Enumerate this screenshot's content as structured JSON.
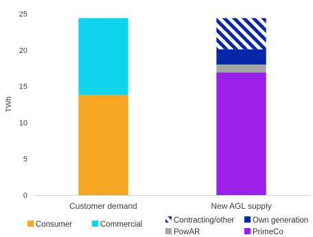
{
  "chart_data": {
    "type": "bar",
    "stacked": true,
    "ylabel": "TWh",
    "xlabel": "",
    "ylim": [
      0,
      25
    ],
    "yticks": [
      0,
      5,
      10,
      15,
      20,
      25
    ],
    "categories": [
      "Customer demand",
      "New AGL supply"
    ],
    "series": [
      {
        "name": "Consumer",
        "values": [
          13.8,
          0
        ],
        "color": "#f5a623",
        "pattern": "solid",
        "legend_group": 0
      },
      {
        "name": "Commercial",
        "values": [
          10.6,
          0
        ],
        "color": "#0fd5ec",
        "pattern": "solid",
        "legend_group": 0
      },
      {
        "name": "PrimeCo",
        "values": [
          0,
          16.9
        ],
        "color": "#9b20e8",
        "pattern": "solid",
        "legend_group": 1
      },
      {
        "name": "PowAR",
        "values": [
          0,
          1.1
        ],
        "color": "#a6a6a6",
        "pattern": "solid",
        "legend_group": 1
      },
      {
        "name": "Own generation",
        "values": [
          0,
          2.1
        ],
        "color": "#0726a8",
        "pattern": "solid",
        "legend_group": 1
      },
      {
        "name": "Contracting/other",
        "values": [
          0,
          4.3
        ],
        "color": "#0726a8",
        "pattern": "diagonal-stripes",
        "legend_group": 1
      }
    ],
    "legend": [
      {
        "name": "Consumer",
        "series": 0
      },
      {
        "name": "Commercial",
        "series": 1
      },
      {
        "name": "Contracting/other",
        "series": 5
      },
      {
        "name": "Own generation",
        "series": 4
      },
      {
        "name": "PowAR",
        "series": 3
      },
      {
        "name": "PrimeCo",
        "series": 2
      }
    ],
    "grid": false,
    "legend_position": "bottom"
  }
}
